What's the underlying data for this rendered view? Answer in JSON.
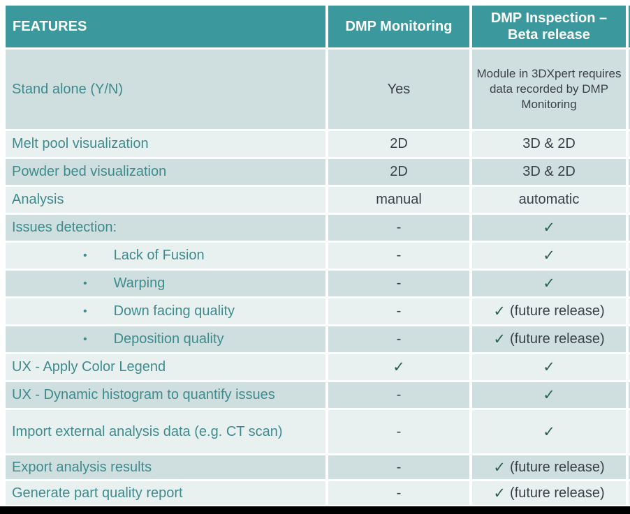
{
  "colors": {
    "header_bg": "#3b999e",
    "row_dark_bg": "#cfdfdf",
    "row_light_bg": "#e9f1f0",
    "feature_text": "#3e8b8d",
    "value_text": "#3a4049",
    "check": "#2b6053",
    "bottom_bar": "#000000"
  },
  "table": {
    "headers": {
      "features": "FEATURES",
      "monitoring": "DMP Monitoring",
      "inspection": "DMP Inspection –\nBeta release"
    },
    "rows": [
      {
        "feature": "Stand alone (Y/N)",
        "bullet": false,
        "monitoring": "Yes",
        "inspection": "Module in 3DXpert requires data recorded by DMP Monitoring",
        "size": "xl"
      },
      {
        "feature": "Melt pool visualization",
        "bullet": false,
        "monitoring": "2D",
        "inspection": "3D & 2D",
        "size": "md"
      },
      {
        "feature": "Powder bed visualization",
        "bullet": false,
        "monitoring": "2D",
        "inspection": "3D & 2D",
        "size": "md"
      },
      {
        "feature": "Analysis",
        "bullet": false,
        "monitoring": "manual",
        "inspection": "automatic",
        "size": "md"
      },
      {
        "feature": "Issues detection:",
        "bullet": false,
        "monitoring": "-",
        "inspection": "✓",
        "size": "md"
      },
      {
        "feature": "Lack of Fusion",
        "bullet": true,
        "monitoring": "-",
        "inspection": "✓",
        "size": "md"
      },
      {
        "feature": "Warping",
        "bullet": true,
        "monitoring": "-",
        "inspection": "✓",
        "size": "md"
      },
      {
        "feature": "Down facing quality",
        "bullet": true,
        "monitoring": "-",
        "inspection": "✓ (future release)",
        "size": "md"
      },
      {
        "feature": "Deposition quality",
        "bullet": true,
        "monitoring": "-",
        "inspection": "✓ (future release)",
        "size": "md"
      },
      {
        "feature": "UX - Apply Color Legend",
        "bullet": false,
        "monitoring": "✓",
        "inspection": "✓",
        "size": "md"
      },
      {
        "feature": "UX - Dynamic histogram to quantify issues",
        "bullet": false,
        "monitoring": "-",
        "inspection": "✓",
        "size": "md"
      },
      {
        "feature": "Import external analysis data (e.g. CT scan)",
        "bullet": false,
        "monitoring": "-",
        "inspection": "✓",
        "size": "lg"
      },
      {
        "feature": "Export analysis results",
        "bullet": false,
        "monitoring": "-",
        "inspection": "✓ (future release)",
        "size": "sm"
      },
      {
        "feature": "Generate part quality report",
        "bullet": false,
        "monitoring": "-",
        "inspection": "✓ (future release)",
        "size": "sm"
      }
    ],
    "bullet_char": "•"
  }
}
